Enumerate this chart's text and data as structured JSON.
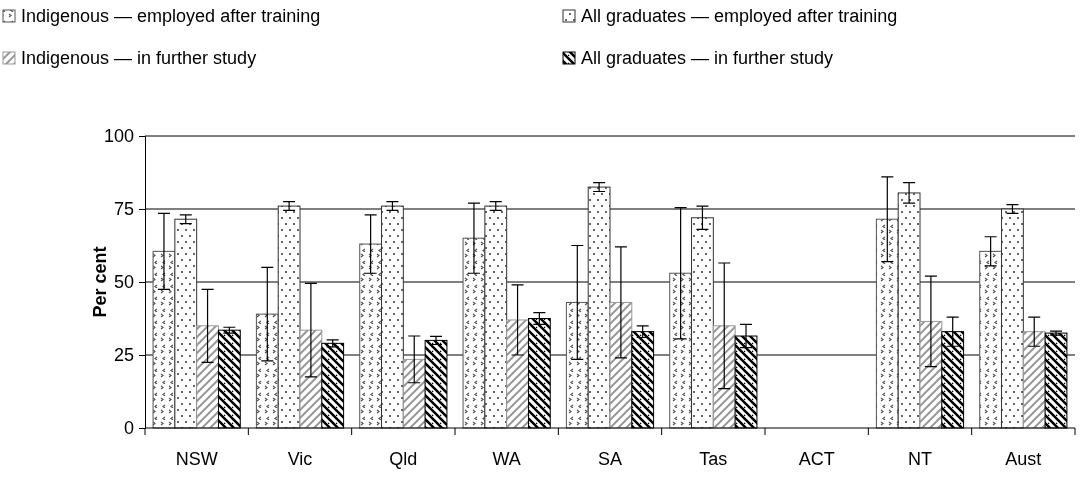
{
  "chart_data": {
    "type": "bar",
    "ylabel": "Per cent",
    "categories": [
      "NSW",
      "Vic",
      "Qld",
      "WA",
      "SA",
      "Tas",
      "ACT",
      "NT",
      "Aust"
    ],
    "ylim": [
      0,
      100
    ],
    "yticks": [
      0,
      25,
      50,
      75,
      100
    ],
    "grid": "y",
    "legend": "top",
    "series": [
      {
        "name": "Indigenous — employed after training",
        "color": "#555555",
        "values": [
          60.5,
          39,
          63,
          65,
          43,
          53,
          null,
          71.5,
          60.5
        ],
        "errors": [
          13,
          16,
          10,
          12,
          19.5,
          22.5,
          null,
          14.5,
          5
        ]
      },
      {
        "name": "All graduates — employed after training",
        "color": "#333333",
        "values": [
          71.5,
          76,
          76,
          76,
          82.5,
          72,
          null,
          80.5,
          75
        ],
        "errors": [
          1.5,
          1.5,
          1.5,
          1.5,
          1.5,
          4,
          null,
          3.5,
          1.5
        ]
      },
      {
        "name": "Indigenous — in further study",
        "color": "#999999",
        "values": [
          35,
          33.5,
          23.5,
          37,
          43,
          35,
          null,
          36.5,
          33
        ],
        "errors": [
          12.5,
          16,
          8,
          12,
          19,
          21.5,
          null,
          15.5,
          5
        ]
      },
      {
        "name": "All graduates — in further study",
        "color": "#000000",
        "values": [
          33.5,
          29,
          30,
          37.5,
          33,
          31.5,
          null,
          33,
          32.5
        ],
        "errors": [
          1,
          1.2,
          1.4,
          2,
          2,
          4,
          null,
          5,
          0.7
        ]
      }
    ]
  }
}
